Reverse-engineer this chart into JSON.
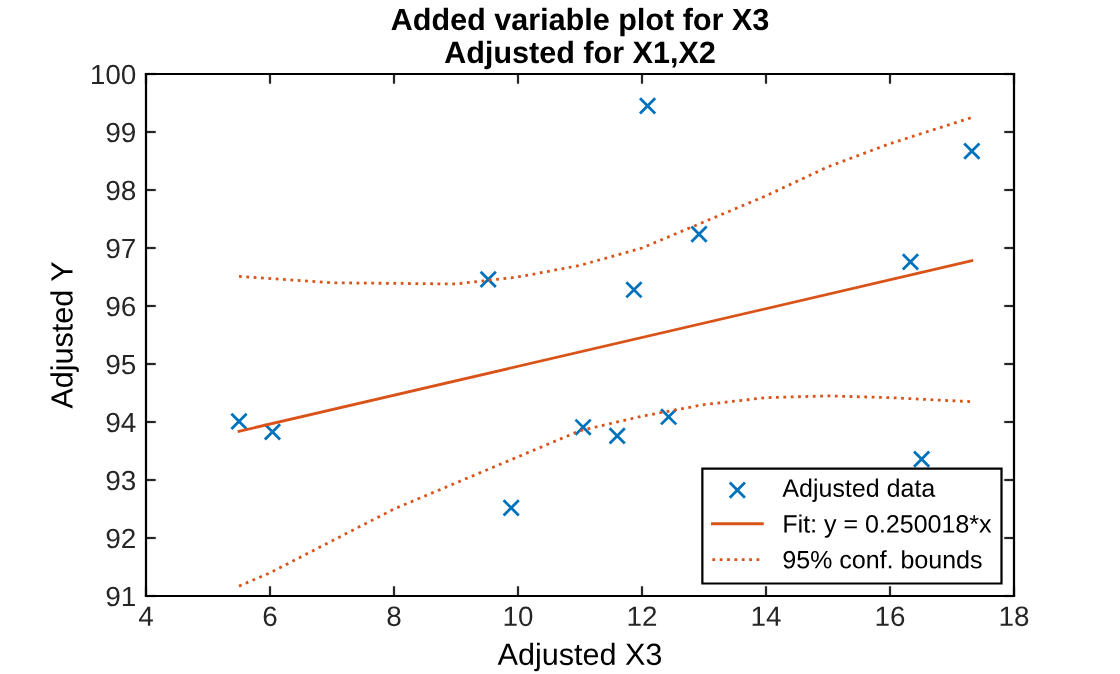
{
  "chart_data": {
    "type": "scatter",
    "title": "Added variable plot for X3\nAdjusted for X1,X2",
    "xlabel": "Adjusted X3",
    "ylabel": "Adjusted Y",
    "xlim": [
      4,
      18
    ],
    "xticks": [
      4,
      6,
      8,
      10,
      12,
      14,
      16,
      18
    ],
    "ylim": [
      91,
      100
    ],
    "yticks": [
      91,
      92,
      93,
      94,
      95,
      96,
      97,
      98,
      99,
      100
    ],
    "grid": false,
    "legend": "bottom right",
    "series": [
      {
        "name": "Adjusted data",
        "marker": "cross",
        "color": "#0072bd",
        "x": [
          5.5,
          6.04,
          9.52,
          9.89,
          11.05,
          11.6,
          12.09,
          11.87,
          12.43,
          12.92,
          16.33,
          16.51,
          17.32
        ],
        "values": [
          94.01,
          93.83,
          96.46,
          92.52,
          93.91,
          93.76,
          99.45,
          96.28,
          94.09,
          97.24,
          96.76,
          93.36,
          98.67
        ]
      },
      {
        "name": "Fit: y = 0.250018*x",
        "type": "line",
        "line_style": "solid",
        "marker": "none",
        "color": "#d95319",
        "x": [
          5.5,
          17.32
        ],
        "values": [
          93.84,
          96.78
        ]
      },
      {
        "name": "95% conf. bounds",
        "type": "line",
        "line_style": "dotted",
        "marker": "none",
        "color": "#d95319",
        "x": [
          5.5,
          7,
          9,
          10,
          11,
          12,
          13,
          14,
          15,
          16,
          17.32
        ],
        "values": [
          96.51,
          96.4,
          96.38,
          96.5,
          96.7,
          97.0,
          97.45,
          97.9,
          98.4,
          98.8,
          99.25
        ]
      },
      {
        "type": "line",
        "line_style": "dotted",
        "marker": "none",
        "color": "#d95319",
        "x": [
          5.5,
          6,
          7,
          8,
          9,
          10,
          11,
          12,
          13,
          14,
          15,
          16,
          17.32
        ],
        "values": [
          91.17,
          91.4,
          91.95,
          92.5,
          92.95,
          93.4,
          93.85,
          94.1,
          94.3,
          94.42,
          94.45,
          94.42,
          94.35
        ]
      }
    ]
  }
}
